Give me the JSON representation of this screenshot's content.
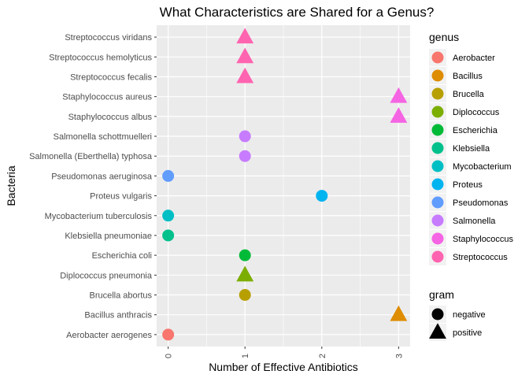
{
  "chart_data": {
    "type": "scatter",
    "title": "What Characteristics are Shared for a Genus?",
    "xlabel": "Number of Effective Antibiotics",
    "ylabel": "Bacteria",
    "xlim": [
      -0.15,
      3.15
    ],
    "x_ticks": [
      0,
      1,
      2,
      3
    ],
    "grid": true,
    "categories": [
      "Aerobacter aerogenes",
      "Bacillus anthracis",
      "Brucella abortus",
      "Diplococcus pneumonia",
      "Escherichia coli",
      "Klebsiella pneumoniae",
      "Mycobacterium tuberculosis",
      "Proteus vulgaris",
      "Pseudomonas aeruginosa",
      "Salmonella (Eberthella) typhosa",
      "Salmonella schottmuelleri",
      "Staphylococcus albus",
      "Staphylococcus aureus",
      "Streptococcus fecalis",
      "Streptococcus hemolyticus",
      "Streptococcus viridans"
    ],
    "points": [
      {
        "bacteria": "Aerobacter aerogenes",
        "x": 0,
        "genus": "Aerobacter",
        "gram": "negative"
      },
      {
        "bacteria": "Bacillus anthracis",
        "x": 3,
        "genus": "Bacillus",
        "gram": "positive"
      },
      {
        "bacteria": "Brucella abortus",
        "x": 1,
        "genus": "Brucella",
        "gram": "negative"
      },
      {
        "bacteria": "Diplococcus pneumonia",
        "x": 1,
        "genus": "Diplococcus",
        "gram": "positive"
      },
      {
        "bacteria": "Escherichia coli",
        "x": 1,
        "genus": "Escherichia",
        "gram": "negative"
      },
      {
        "bacteria": "Klebsiella pneumoniae",
        "x": 0,
        "genus": "Klebsiella",
        "gram": "negative"
      },
      {
        "bacteria": "Mycobacterium tuberculosis",
        "x": 0,
        "genus": "Mycobacterium",
        "gram": "negative"
      },
      {
        "bacteria": "Proteus vulgaris",
        "x": 2,
        "genus": "Proteus",
        "gram": "negative"
      },
      {
        "bacteria": "Pseudomonas aeruginosa",
        "x": 0,
        "genus": "Pseudomonas",
        "gram": "negative"
      },
      {
        "bacteria": "Salmonella (Eberthella) typhosa",
        "x": 1,
        "genus": "Salmonella",
        "gram": "negative"
      },
      {
        "bacteria": "Salmonella schottmuelleri",
        "x": 1,
        "genus": "Salmonella",
        "gram": "negative"
      },
      {
        "bacteria": "Staphylococcus albus",
        "x": 3,
        "genus": "Staphylococcus",
        "gram": "positive"
      },
      {
        "bacteria": "Staphylococcus aureus",
        "x": 3,
        "genus": "Staphylococcus",
        "gram": "positive"
      },
      {
        "bacteria": "Streptococcus fecalis",
        "x": 1,
        "genus": "Streptococcus",
        "gram": "positive"
      },
      {
        "bacteria": "Streptococcus hemolyticus",
        "x": 1,
        "genus": "Streptococcus",
        "gram": "positive"
      },
      {
        "bacteria": "Streptococcus viridans",
        "x": 1,
        "genus": "Streptococcus",
        "gram": "positive"
      }
    ],
    "legend": {
      "placement": "right",
      "genus_title": "genus",
      "genus": [
        {
          "name": "Aerobacter",
          "color": "#F8766D"
        },
        {
          "name": "Bacillus",
          "color": "#DE8C00"
        },
        {
          "name": "Brucella",
          "color": "#B79F00"
        },
        {
          "name": "Diplococcus",
          "color": "#7CAE00"
        },
        {
          "name": "Escherichia",
          "color": "#00BA38"
        },
        {
          "name": "Klebsiella",
          "color": "#00C08B"
        },
        {
          "name": "Mycobacterium",
          "color": "#00BFC4"
        },
        {
          "name": "Proteus",
          "color": "#00B4F0"
        },
        {
          "name": "Pseudomonas",
          "color": "#619CFF"
        },
        {
          "name": "Salmonella",
          "color": "#C77CFF"
        },
        {
          "name": "Staphylococcus",
          "color": "#F564E3"
        },
        {
          "name": "Streptococcus",
          "color": "#FF64B0"
        }
      ],
      "gram_title": "gram",
      "gram": [
        {
          "name": "negative",
          "shape": "circle"
        },
        {
          "name": "positive",
          "shape": "triangle"
        }
      ]
    },
    "colors": {
      "panel_background": "#EBEBEB",
      "grid": "#FFFFFF",
      "tick_text": "#4D4D4D"
    }
  }
}
